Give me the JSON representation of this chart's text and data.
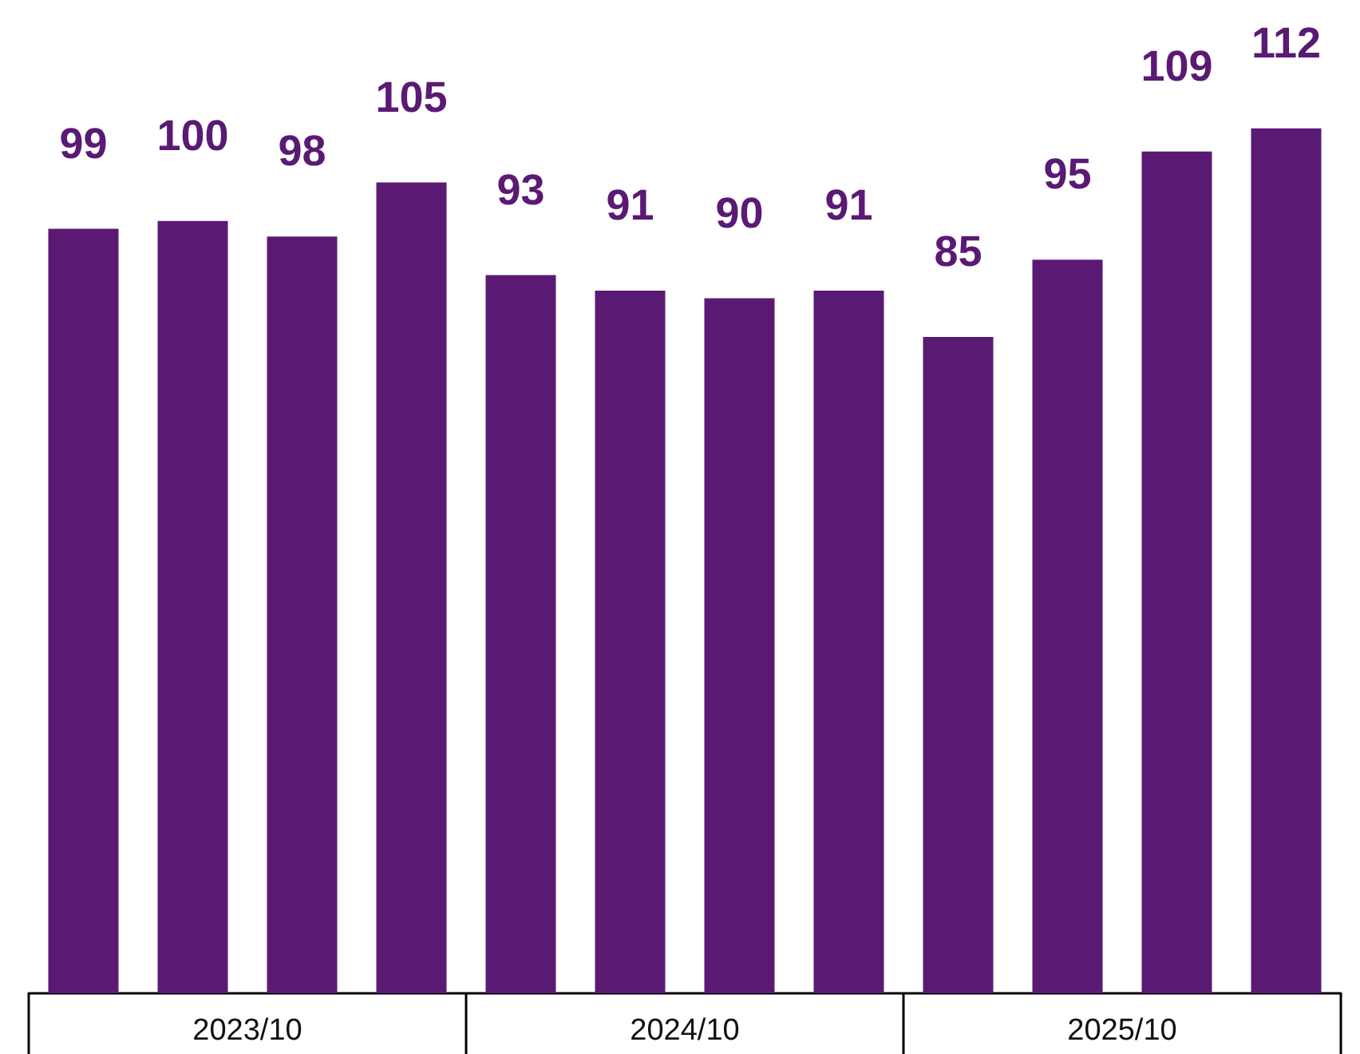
{
  "chart_data": {
    "type": "bar",
    "categories": [
      null,
      null,
      null,
      null,
      null,
      null,
      null,
      null,
      null,
      null,
      null,
      null
    ],
    "values": [
      99,
      100,
      98,
      105,
      93,
      91,
      90,
      91,
      85,
      95,
      109,
      112
    ],
    "color": "#5a1a74",
    "data_labels": true,
    "annotations": [
      "2023/10",
      "2024/10",
      "2025/10"
    ]
  }
}
